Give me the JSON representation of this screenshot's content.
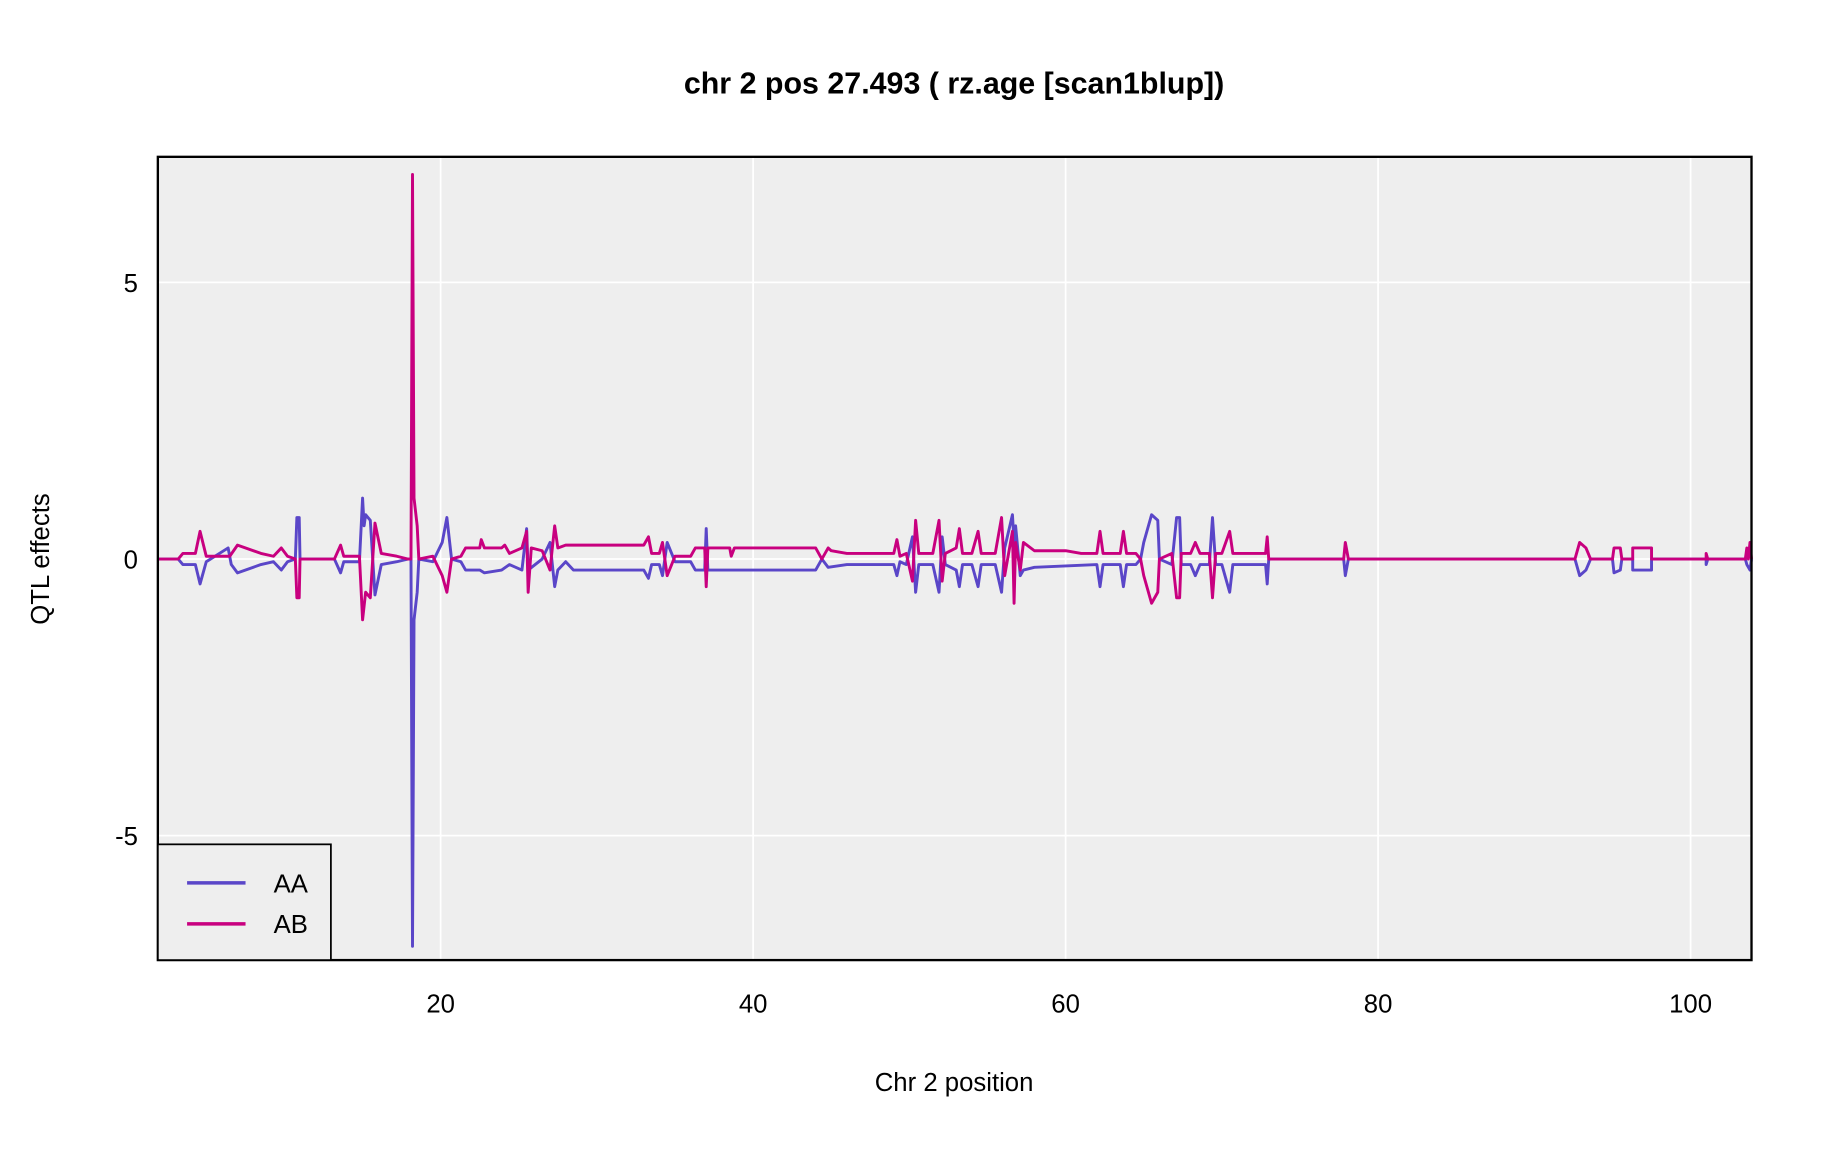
{
  "chart_data": {
    "type": "line",
    "title": "chr 2 pos 27.493 ( rz.age  [scan1blup])",
    "xlabel": "Chr 2 position",
    "ylabel": "QTL effects",
    "xlim": [
      1.9,
      103.9
    ],
    "ylim": [
      -7.25,
      7.27
    ],
    "xticks": [
      20,
      40,
      60,
      80,
      100
    ],
    "xtick_labels": [
      "20",
      "40",
      "60",
      "80",
      "100"
    ],
    "yticks": [
      -5,
      0,
      5
    ],
    "ytick_labels": [
      "-5",
      "0",
      "5"
    ],
    "grid": true,
    "background": "#eeeeee",
    "legend": {
      "placement": "bottom-left",
      "entries": [
        "AA",
        "AB"
      ]
    },
    "series": [
      {
        "name": "AA",
        "color": "#5a46c8",
        "points": [
          [
            1.9,
            0
          ],
          [
            3.2,
            0
          ],
          [
            3.5,
            -0.1
          ],
          [
            4.3,
            -0.1
          ],
          [
            4.6,
            -0.45
          ],
          [
            5.0,
            -0.05
          ],
          [
            6.4,
            0.2
          ],
          [
            6.6,
            -0.1
          ],
          [
            7,
            -0.25
          ],
          [
            8.5,
            -0.1
          ],
          [
            9.3,
            -0.05
          ],
          [
            9.8,
            -0.2
          ],
          [
            10.2,
            -0.05
          ],
          [
            10.7,
            0
          ],
          [
            10.8,
            0.75
          ],
          [
            10.95,
            0.75
          ],
          [
            11,
            0
          ],
          [
            13.2,
            0
          ],
          [
            13.6,
            -0.25
          ],
          [
            13.8,
            -0.05
          ],
          [
            14.8,
            -0.05
          ],
          [
            15.0,
            1.1
          ],
          [
            15.1,
            0.6
          ],
          [
            15.2,
            0.8
          ],
          [
            15.5,
            0.7
          ],
          [
            15.8,
            -0.65
          ],
          [
            16.2,
            -0.1
          ],
          [
            17.2,
            -0.05
          ],
          [
            17.9,
            0
          ],
          [
            18.1,
            0
          ],
          [
            18.2,
            -7.0
          ],
          [
            18.3,
            -1.1
          ],
          [
            18.5,
            -0.6
          ],
          [
            18.6,
            0
          ],
          [
            19.5,
            -0.05
          ],
          [
            20.1,
            0.3
          ],
          [
            20.4,
            0.75
          ],
          [
            20.7,
            0
          ],
          [
            21.3,
            -0.05
          ],
          [
            21.6,
            -0.2
          ],
          [
            22.5,
            -0.2
          ],
          [
            22.8,
            -0.25
          ],
          [
            23.9,
            -0.2
          ],
          [
            24.4,
            -0.1
          ],
          [
            25.2,
            -0.2
          ],
          [
            25.5,
            0.55
          ],
          [
            25.6,
            -0.2
          ],
          [
            26.5,
            0
          ],
          [
            27,
            0.3
          ],
          [
            27.3,
            -0.5
          ],
          [
            27.5,
            -0.2
          ],
          [
            28,
            -0.05
          ],
          [
            28.5,
            -0.2
          ],
          [
            33,
            -0.2
          ],
          [
            33.3,
            -0.35
          ],
          [
            33.5,
            -0.1
          ],
          [
            34,
            -0.1
          ],
          [
            34.2,
            -0.3
          ],
          [
            34.5,
            0.3
          ],
          [
            35,
            -0.05
          ],
          [
            36,
            -0.05
          ],
          [
            36.3,
            -0.2
          ],
          [
            36.9,
            -0.2
          ],
          [
            37,
            0.55
          ],
          [
            37.1,
            -0.2
          ],
          [
            44,
            -0.2
          ],
          [
            44.4,
            0
          ],
          [
            44.8,
            -0.15
          ],
          [
            46,
            -0.1
          ],
          [
            49,
            -0.1
          ],
          [
            49.2,
            -0.3
          ],
          [
            49.4,
            -0.05
          ],
          [
            49.8,
            -0.1
          ],
          [
            50.2,
            0.4
          ],
          [
            50.4,
            -0.6
          ],
          [
            50.6,
            -0.1
          ],
          [
            51.5,
            -0.1
          ],
          [
            51.9,
            -0.6
          ],
          [
            52.1,
            0.4
          ],
          [
            52.3,
            -0.1
          ],
          [
            53,
            -0.2
          ],
          [
            53.2,
            -0.5
          ],
          [
            53.4,
            -0.1
          ],
          [
            54,
            -0.1
          ],
          [
            54.4,
            -0.5
          ],
          [
            54.6,
            -0.1
          ],
          [
            55.5,
            -0.1
          ],
          [
            55.9,
            -0.6
          ],
          [
            56.1,
            0.2
          ],
          [
            56.6,
            0.8
          ],
          [
            56.7,
            0.3
          ],
          [
            56.8,
            0.6
          ],
          [
            57.1,
            -0.3
          ],
          [
            57.3,
            -0.2
          ],
          [
            58,
            -0.15
          ],
          [
            62,
            -0.1
          ],
          [
            62.2,
            -0.5
          ],
          [
            62.4,
            -0.1
          ],
          [
            63.5,
            -0.1
          ],
          [
            63.7,
            -0.5
          ],
          [
            63.9,
            -0.1
          ],
          [
            64.5,
            -0.1
          ],
          [
            64.8,
            0
          ],
          [
            65,
            0.3
          ],
          [
            65.5,
            0.8
          ],
          [
            65.9,
            0.7
          ],
          [
            66,
            0
          ],
          [
            66.8,
            -0.1
          ],
          [
            67.1,
            0.75
          ],
          [
            67.3,
            0.75
          ],
          [
            67.4,
            -0.1
          ],
          [
            68,
            -0.1
          ],
          [
            68.3,
            -0.3
          ],
          [
            68.6,
            -0.1
          ],
          [
            69.2,
            -0.1
          ],
          [
            69.4,
            0.75
          ],
          [
            69.6,
            -0.1
          ],
          [
            70,
            -0.1
          ],
          [
            70.5,
            -0.6
          ],
          [
            70.7,
            -0.1
          ],
          [
            72.8,
            -0.1
          ],
          [
            72.9,
            -0.45
          ],
          [
            73,
            0
          ],
          [
            77.8,
            0
          ],
          [
            77.9,
            -0.3
          ],
          [
            78.1,
            0
          ],
          [
            92.6,
            0
          ],
          [
            92.9,
            -0.3
          ],
          [
            93.3,
            -0.2
          ],
          [
            93.6,
            0
          ],
          [
            95,
            0
          ],
          [
            95.1,
            -0.25
          ],
          [
            95.5,
            -0.2
          ],
          [
            95.6,
            0
          ],
          [
            96.3,
            0
          ],
          [
            96.3,
            -0.2
          ],
          [
            97.5,
            -0.2
          ],
          [
            97.5,
            0
          ],
          [
            101,
            0
          ],
          [
            101,
            -0.1
          ],
          [
            101.1,
            0
          ],
          [
            103.5,
            0
          ],
          [
            103.6,
            -0.1
          ],
          [
            103.8,
            -0.2
          ],
          [
            103.9,
            0
          ]
        ]
      },
      {
        "name": "AB",
        "color": "#c8007f",
        "points": [
          [
            1.9,
            0
          ],
          [
            3.2,
            0
          ],
          [
            3.5,
            0.1
          ],
          [
            4.3,
            0.1
          ],
          [
            4.6,
            0.5
          ],
          [
            5.0,
            0.05
          ],
          [
            6.5,
            0.05
          ],
          [
            7.0,
            0.25
          ],
          [
            8.5,
            0.1
          ],
          [
            9.3,
            0.05
          ],
          [
            9.8,
            0.2
          ],
          [
            10.2,
            0.05
          ],
          [
            10.7,
            0
          ],
          [
            10.8,
            -0.7
          ],
          [
            10.95,
            -0.7
          ],
          [
            11.0,
            0
          ],
          [
            13.2,
            0
          ],
          [
            13.6,
            0.25
          ],
          [
            13.8,
            0.05
          ],
          [
            14.8,
            0.05
          ],
          [
            15.0,
            -1.1
          ],
          [
            15.2,
            -0.6
          ],
          [
            15.5,
            -0.7
          ],
          [
            15.8,
            0.65
          ],
          [
            16.2,
            0.1
          ],
          [
            17.2,
            0.05
          ],
          [
            17.9,
            0
          ],
          [
            18.1,
            0
          ],
          [
            18.2,
            6.95
          ],
          [
            18.3,
            1.1
          ],
          [
            18.5,
            0.6
          ],
          [
            18.6,
            0
          ],
          [
            19.5,
            0.05
          ],
          [
            20.1,
            -0.3
          ],
          [
            20.4,
            -0.6
          ],
          [
            20.7,
            0
          ],
          [
            21.3,
            0.05
          ],
          [
            21.6,
            0.2
          ],
          [
            22.5,
            0.2
          ],
          [
            22.6,
            0.35
          ],
          [
            22.8,
            0.2
          ],
          [
            23.9,
            0.2
          ],
          [
            24.1,
            0.25
          ],
          [
            24.4,
            0.1
          ],
          [
            25.2,
            0.2
          ],
          [
            25.5,
            0.5
          ],
          [
            25.6,
            -0.6
          ],
          [
            25.8,
            0.2
          ],
          [
            26.5,
            0.15
          ],
          [
            27.0,
            -0.2
          ],
          [
            27.3,
            0.6
          ],
          [
            27.5,
            0.2
          ],
          [
            28.0,
            0.25
          ],
          [
            33.0,
            0.25
          ],
          [
            33.3,
            0.4
          ],
          [
            33.5,
            0.1
          ],
          [
            34.0,
            0.1
          ],
          [
            34.2,
            0.3
          ],
          [
            34.5,
            -0.3
          ],
          [
            35.0,
            0.05
          ],
          [
            36.0,
            0.05
          ],
          [
            36.3,
            0.2
          ],
          [
            36.9,
            0.2
          ],
          [
            37.0,
            -0.5
          ],
          [
            37.1,
            0.2
          ],
          [
            38.5,
            0.2
          ],
          [
            38.6,
            0.05
          ],
          [
            38.8,
            0.2
          ],
          [
            44.0,
            0.2
          ],
          [
            44.4,
            0
          ],
          [
            44.8,
            0.2
          ],
          [
            45,
            0.15
          ],
          [
            46,
            0.1
          ],
          [
            49,
            0.1
          ],
          [
            49.2,
            0.35
          ],
          [
            49.4,
            0.05
          ],
          [
            49.8,
            0.1
          ],
          [
            50.2,
            -0.4
          ],
          [
            50.4,
            0.7
          ],
          [
            50.6,
            0.1
          ],
          [
            51.5,
            0.1
          ],
          [
            51.9,
            0.7
          ],
          [
            52.1,
            -0.4
          ],
          [
            52.3,
            0.1
          ],
          [
            53,
            0.2
          ],
          [
            53.2,
            0.55
          ],
          [
            53.4,
            0.1
          ],
          [
            54,
            0.1
          ],
          [
            54.4,
            0.5
          ],
          [
            54.6,
            0.1
          ],
          [
            55.5,
            0.1
          ],
          [
            55.9,
            0.75
          ],
          [
            56.1,
            -0.3
          ],
          [
            56.6,
            0.5
          ],
          [
            56.7,
            -0.8
          ],
          [
            56.8,
            0.3
          ],
          [
            57.1,
            -0.2
          ],
          [
            57.3,
            0.3
          ],
          [
            58,
            0.15
          ],
          [
            60,
            0.15
          ],
          [
            61,
            0.1
          ],
          [
            62,
            0.1
          ],
          [
            62.2,
            0.5
          ],
          [
            62.4,
            0.1
          ],
          [
            63.5,
            0.1
          ],
          [
            63.7,
            0.5
          ],
          [
            63.9,
            0.1
          ],
          [
            64.5,
            0.1
          ],
          [
            64.8,
            0
          ],
          [
            65.0,
            -0.3
          ],
          [
            65.5,
            -0.8
          ],
          [
            65.9,
            -0.6
          ],
          [
            66,
            0
          ],
          [
            66.8,
            0.1
          ],
          [
            67.1,
            -0.7
          ],
          [
            67.3,
            -0.7
          ],
          [
            67.4,
            0.1
          ],
          [
            68,
            0.1
          ],
          [
            68.3,
            0.3
          ],
          [
            68.6,
            0.1
          ],
          [
            69.2,
            0.1
          ],
          [
            69.4,
            -0.7
          ],
          [
            69.6,
            0.1
          ],
          [
            70,
            0.1
          ],
          [
            70.5,
            0.5
          ],
          [
            70.7,
            0.1
          ],
          [
            72.8,
            0.1
          ],
          [
            72.9,
            0.4
          ],
          [
            73,
            0
          ],
          [
            77.8,
            0
          ],
          [
            77.9,
            0.3
          ],
          [
            78.1,
            0
          ],
          [
            92.6,
            0
          ],
          [
            92.9,
            0.3
          ],
          [
            93.3,
            0.2
          ],
          [
            93.6,
            0
          ],
          [
            95,
            0
          ],
          [
            95.1,
            0.2
          ],
          [
            95.5,
            0.2
          ],
          [
            95.6,
            0
          ],
          [
            96.3,
            0
          ],
          [
            96.3,
            0.2
          ],
          [
            97.5,
            0.2
          ],
          [
            97.5,
            0
          ],
          [
            101,
            0
          ],
          [
            101,
            0.1
          ],
          [
            101.1,
            0
          ],
          [
            103.5,
            0
          ],
          [
            103.6,
            0.2
          ],
          [
            103.7,
            0
          ],
          [
            103.8,
            0.3
          ],
          [
            103.9,
            0
          ]
        ]
      }
    ]
  }
}
